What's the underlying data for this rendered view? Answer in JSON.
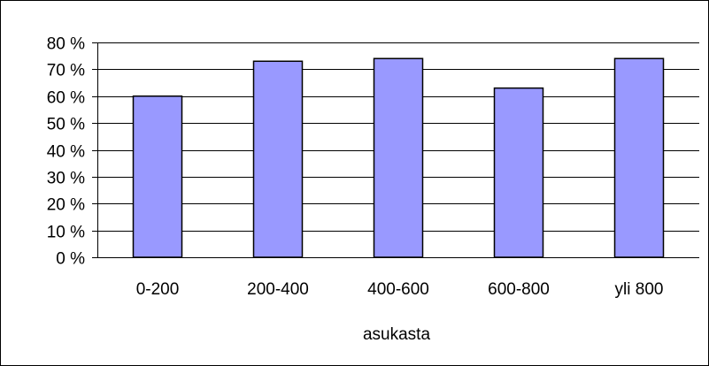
{
  "chart_data": {
    "type": "bar",
    "categories": [
      "0-200",
      "200-400",
      "400-600",
      "600-800",
      "yli 800"
    ],
    "values": [
      60,
      73,
      74,
      63,
      74
    ],
    "ylim": [
      0,
      80
    ],
    "yticks": [
      "0 %",
      "10 %",
      "20 %",
      "30 %",
      "40 %",
      "50 %",
      "60 %",
      "70 %",
      "80 %"
    ],
    "xlabel": "asukasta",
    "ylabel": "",
    "title": "",
    "grid": true,
    "bar_color": "#9999ff",
    "bar_edge_color": "#000000"
  }
}
